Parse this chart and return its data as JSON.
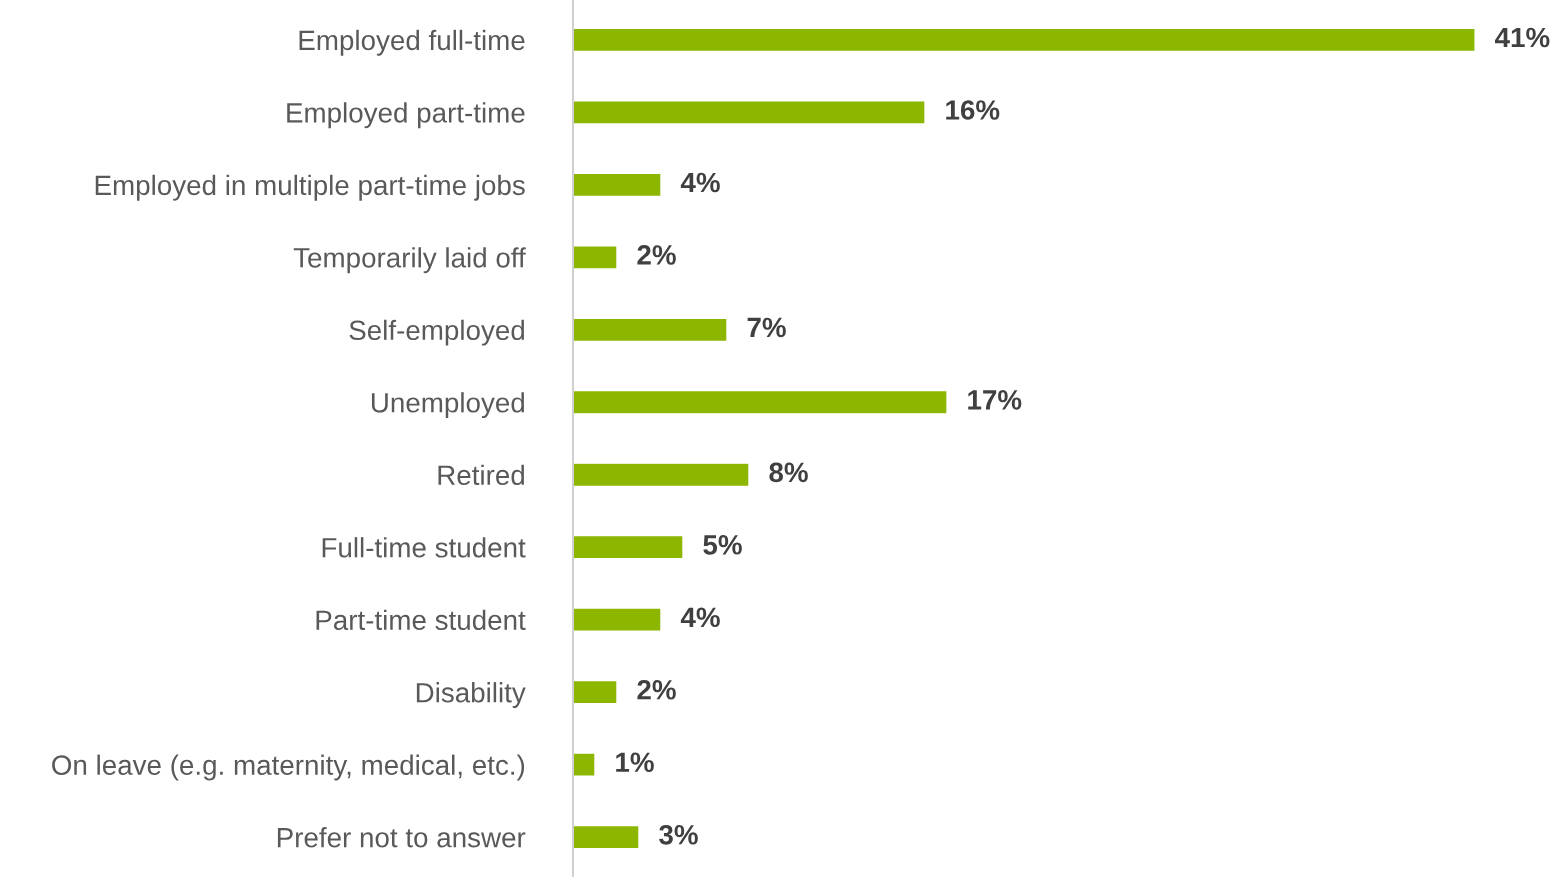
{
  "chart_data": {
    "type": "bar",
    "orientation": "horizontal",
    "categories": [
      "Employed full-time",
      "Employed part-time",
      "Employed in multiple part-time jobs",
      "Temporarily laid off",
      "Self-employed",
      "Unemployed",
      "Retired",
      "Full-time student",
      "Part-time student",
      "Disability",
      "On leave (e.g. maternity, medical, etc.)",
      "Prefer not to answer"
    ],
    "values": [
      41,
      16,
      4,
      2,
      7,
      17,
      8,
      5,
      4,
      2,
      1,
      3
    ],
    "value_labels": [
      "41%",
      "16%",
      "4%",
      "2%",
      "7%",
      "17%",
      "8%",
      "5%",
      "4%",
      "2%",
      "1%",
      "3%"
    ],
    "color": "#8db600",
    "grid": false,
    "legend": false,
    "tick_labels": "y"
  }
}
